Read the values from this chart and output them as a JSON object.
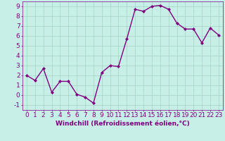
{
  "x": [
    0,
    1,
    2,
    3,
    4,
    5,
    6,
    7,
    8,
    9,
    10,
    11,
    12,
    13,
    14,
    15,
    16,
    17,
    18,
    19,
    20,
    21,
    22,
    23
  ],
  "y": [
    2.0,
    1.5,
    2.7,
    0.3,
    1.4,
    1.4,
    0.1,
    -0.2,
    -0.8,
    2.3,
    3.0,
    2.9,
    5.7,
    8.7,
    8.5,
    9.0,
    9.1,
    8.7,
    7.3,
    6.7,
    6.7,
    5.3,
    6.8,
    6.1
  ],
  "line_color": "#800080",
  "marker": "D",
  "marker_size": 2,
  "line_width": 1.0,
  "background_color": "#c8eee8",
  "grid_color": "#a8d8c8",
  "xlabel": "Windchill (Refroidissement éolien,°C)",
  "xlim": [
    -0.5,
    23.5
  ],
  "ylim": [
    -1.5,
    9.5
  ],
  "xtick_labels": [
    "0",
    "1",
    "2",
    "3",
    "4",
    "5",
    "6",
    "7",
    "8",
    "9",
    "10",
    "11",
    "12",
    "13",
    "14",
    "15",
    "16",
    "17",
    "18",
    "19",
    "20",
    "21",
    "22",
    "23"
  ],
  "ytick_values": [
    -1,
    0,
    1,
    2,
    3,
    4,
    5,
    6,
    7,
    8,
    9
  ],
  "tick_color": "#800080",
  "xlabel_color": "#800080",
  "label_fontsize": 6.5,
  "tick_fontsize": 6.5
}
